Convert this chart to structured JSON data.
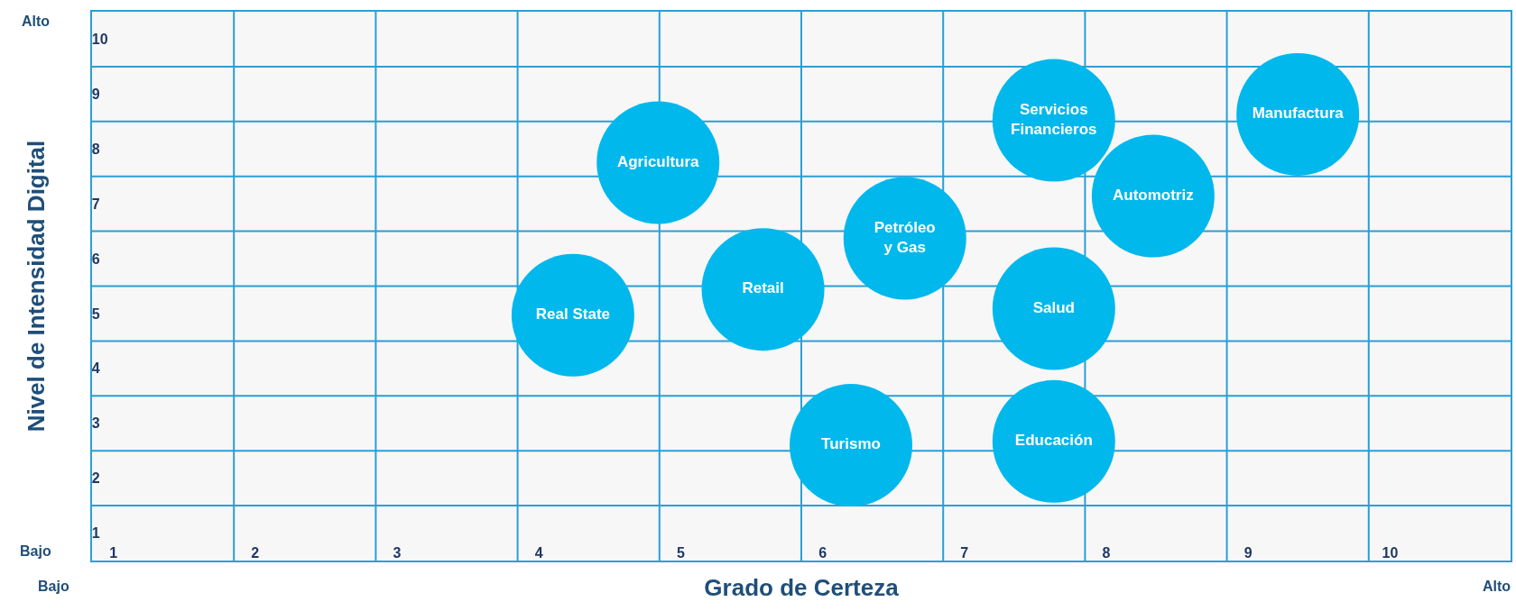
{
  "chart_data": {
    "type": "bubble",
    "xlabel": "Grado de Certeza",
    "ylabel": "Nivel de Intensidad Digital",
    "xlim": [
      0.85,
      10.85
    ],
    "ylim": [
      0.5,
      10.5
    ],
    "xticks": [
      1,
      2,
      3,
      4,
      5,
      6,
      7,
      8,
      9,
      10,
      {
        "value": 1.85,
        "label": null
      },
      {
        "value": 2.85,
        "label": null
      },
      {
        "value": 3.85,
        "label": null
      },
      {
        "value": 4.85,
        "label": null
      },
      {
        "value": 5.85,
        "label": null
      },
      {
        "value": 6.85,
        "label": null
      },
      {
        "value": 7.85,
        "label": null
      },
      {
        "value": 8.85,
        "label": null
      },
      {
        "value": 9.85,
        "label": null
      }
    ],
    "yticks": [
      1,
      2,
      3,
      4,
      5,
      6,
      7,
      8,
      9,
      10,
      {
        "value": 1.5,
        "label": null
      },
      {
        "value": 2.5,
        "label": null
      },
      {
        "value": 3.5,
        "label": null
      },
      {
        "value": 4.5,
        "label": null
      },
      {
        "value": 5.5,
        "label": null
      },
      {
        "value": 6.5,
        "label": null
      },
      {
        "value": 7.5,
        "label": null
      },
      {
        "value": 8.5,
        "label": null
      },
      {
        "value": 9.5,
        "label": null
      }
    ],
    "grid": true,
    "annotations": [
      "Alto",
      "Bajo",
      "Bajo",
      "Alto"
    ],
    "series": [
      {
        "name": "Agricultura",
        "color": "#00b8ec",
        "x": [
          4.84
        ],
        "values": [
          7.75
        ],
        "sizes": [
          1
        ]
      },
      {
        "name": "Real State",
        "color": "#00b8ec",
        "x": [
          4.24
        ],
        "values": [
          4.97
        ],
        "sizes": [
          1
        ]
      },
      {
        "name": "Retail",
        "color": "#00b8ec",
        "x": [
          5.58
        ],
        "values": [
          5.44
        ],
        "sizes": [
          1
        ]
      },
      {
        "name": "Petróleo\ny Gas",
        "color": "#00b8ec",
        "x": [
          6.58
        ],
        "values": [
          6.37
        ],
        "sizes": [
          1
        ]
      },
      {
        "name": "Turismo",
        "color": "#00b8ec",
        "x": [
          6.2
        ],
        "values": [
          2.6
        ],
        "sizes": [
          1
        ]
      },
      {
        "name": "Servicios\nFinancieros",
        "color": "#00b8ec",
        "x": [
          7.63
        ],
        "values": [
          8.52
        ],
        "sizes": [
          1
        ]
      },
      {
        "name": "Salud",
        "color": "#00b8ec",
        "x": [
          7.63
        ],
        "values": [
          5.09
        ],
        "sizes": [
          1
        ]
      },
      {
        "name": "Educación",
        "color": "#00b8ec",
        "x": [
          7.63
        ],
        "values": [
          2.67
        ],
        "sizes": [
          1
        ]
      },
      {
        "name": "Automotriz",
        "color": "#00b8ec",
        "x": [
          8.33
        ],
        "values": [
          7.14
        ],
        "sizes": [
          1
        ]
      },
      {
        "name": "Manufactura",
        "color": "#00b8ec",
        "x": [
          9.35
        ],
        "values": [
          8.63
        ],
        "sizes": [
          1
        ]
      }
    ]
  }
}
